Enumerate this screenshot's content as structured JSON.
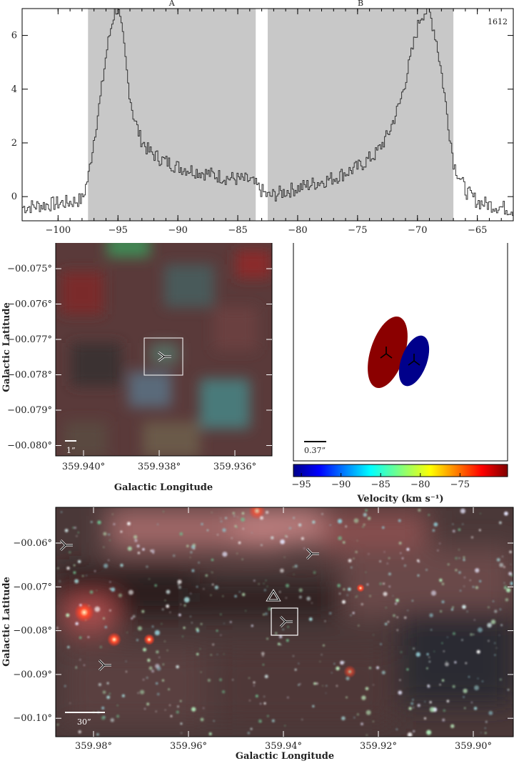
{
  "spectrum": {
    "source_id": "1612",
    "regions": [
      {
        "label": "A",
        "vmin": -97.5,
        "vmax": -83.5
      },
      {
        "label": "B",
        "vmin": -82.5,
        "vmax": -67.0
      }
    ],
    "xlim": [
      -103,
      -62
    ],
    "ylim": [
      -0.9,
      7.0
    ],
    "xticks": [
      -100,
      -95,
      -90,
      -85,
      -80,
      -75,
      -70,
      -65
    ],
    "yticks": [
      0,
      2,
      4,
      6
    ]
  },
  "chart_data": [
    {
      "type": "line",
      "title": "",
      "xlabel": "",
      "ylabel": "",
      "xlim": [
        -103,
        -62
      ],
      "ylim": [
        -0.9,
        7.0
      ],
      "series": [
        {
          "x": [
            -103,
            -101,
            -99,
            -98,
            -97.5,
            -97,
            -96.5,
            -96,
            -95.5,
            -95.2,
            -95,
            -94.6,
            -94.2,
            -93.8,
            -93.2,
            -92.5,
            -91.5,
            -90,
            -88,
            -86,
            -84,
            -82.5,
            -81,
            -79,
            -77,
            -75,
            -73.5,
            -72.5,
            -71.5,
            -70.8,
            -70.2,
            -69.8,
            -69.4,
            -69,
            -68.5,
            -68,
            -67.5,
            -67,
            -66,
            -65,
            -64,
            -63,
            -62
          ],
          "y": [
            -0.4,
            -0.3,
            -0.2,
            -0.1,
            0.8,
            2.3,
            3.7,
            5.4,
            6.6,
            7.0,
            6.9,
            5.8,
            4.2,
            3.1,
            2.2,
            1.7,
            1.4,
            1.1,
            0.9,
            0.7,
            0.6,
            0.0,
            0.2,
            0.45,
            0.7,
            1.1,
            1.6,
            2.3,
            3.5,
            4.8,
            6.0,
            6.7,
            6.9,
            6.8,
            5.9,
            4.5,
            2.8,
            1.2,
            0.2,
            -0.2,
            -0.3,
            -0.4,
            -0.5
          ]
        }
      ]
    },
    {
      "type": "scatter",
      "title": "",
      "xlabel": "Galactic Longitude",
      "ylabel": "Galactic Latitude",
      "x_ticks": [
        "359.940°",
        "359.938°",
        "359.936°"
      ],
      "y_ticks": [
        "−00.075°",
        "−00.076°",
        "−00.077°",
        "−00.078°",
        "−00.079°",
        "−00.080°"
      ],
      "scale_bar": "1”"
    },
    {
      "type": "scatter",
      "title": "",
      "xlabel": "Velocity (km s⁻¹)",
      "ylabel": "",
      "colorbar_ticks": [
        "−95",
        "−90",
        "−85",
        "−80",
        "−75"
      ],
      "colorbar_range": [
        -96,
        -69
      ],
      "scale_bar": "0.37”",
      "series": [
        {
          "velocity": -70,
          "color": "#8b0000"
        },
        {
          "velocity": -96,
          "color": "#00008b"
        }
      ]
    },
    {
      "type": "scatter",
      "title": "",
      "xlabel": "Galactic Longitude",
      "ylabel": "Galactic Latitude",
      "x_ticks": [
        "359.98°",
        "359.96°",
        "359.94°",
        "359.92°",
        "359.90°"
      ],
      "y_ticks": [
        "−00.06°",
        "−00.07°",
        "−00.08°",
        "−00.09°",
        "−00.10°"
      ],
      "scale_bar": "30”"
    }
  ],
  "colors": {
    "shade": "#c8c8c8",
    "red_component": "#8b0000",
    "blue_component": "#00008b"
  }
}
